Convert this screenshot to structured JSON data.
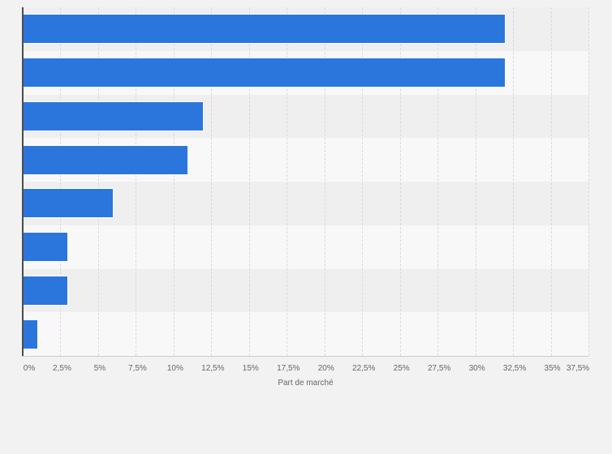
{
  "chart_data": {
    "type": "bar",
    "orientation": "horizontal",
    "title": "",
    "categories": [
      "",
      "",
      "",
      "",
      "",
      "",
      "",
      ""
    ],
    "values": [
      32,
      32,
      12,
      11,
      6,
      3,
      3,
      1
    ],
    "unit": "%",
    "xlabel": "Part de marché",
    "ylabel": "",
    "xlim": [
      0,
      37.5
    ],
    "tick_step": 2.5,
    "x_tick_labels": [
      "0%",
      "2,5%",
      "5%",
      "7,5%",
      "10%",
      "12,5%",
      "15%",
      "17,5%",
      "20%",
      "22,5%",
      "25%",
      "27,5%",
      "30%",
      "32,5%",
      "35%",
      "37,5%"
    ],
    "grid": "vertical-dashed",
    "legend": "none",
    "colors": {
      "bar": "#2b76dc",
      "bar_border": "#ffffff",
      "stripe_odd": "#efefef",
      "stripe_even": "#f8f8f8",
      "background": "#f2f2f2",
      "gridline": "#d9d9d9",
      "axis_line": "#4d4d4d",
      "baseline": "#cccccc",
      "label_text": "#666666"
    }
  }
}
